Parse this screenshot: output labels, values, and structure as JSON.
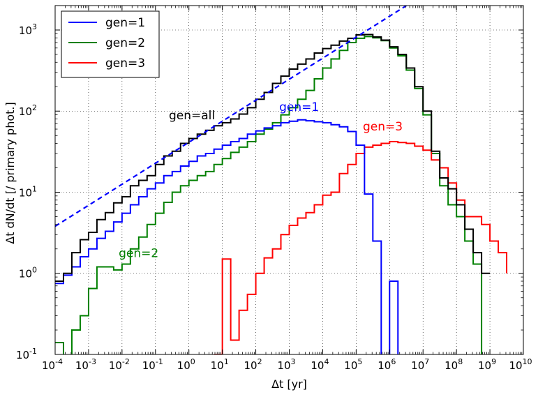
{
  "chart_data": {
    "type": "line",
    "step": true,
    "xscale": "log",
    "yscale": "log",
    "xlim": [
      0.0001,
      10000000000
    ],
    "ylim": [
      0.1,
      2000
    ],
    "grid": true,
    "legend_position": "top-left",
    "xlabel": "Δt [yr]",
    "ylabel": "Δt dN/dt [/ primary phot.]",
    "x_ticks": [
      {
        "base": "10",
        "exp": "-4"
      },
      {
        "base": "10",
        "exp": "-3"
      },
      {
        "base": "10",
        "exp": "-2"
      },
      {
        "base": "10",
        "exp": "-1"
      },
      {
        "base": "10",
        "exp": "0"
      },
      {
        "base": "10",
        "exp": "1"
      },
      {
        "base": "10",
        "exp": "2"
      },
      {
        "base": "10",
        "exp": "3"
      },
      {
        "base": "10",
        "exp": "4"
      },
      {
        "base": "10",
        "exp": "5"
      },
      {
        "base": "10",
        "exp": "6"
      },
      {
        "base": "10",
        "exp": "7"
      },
      {
        "base": "10",
        "exp": "8"
      },
      {
        "base": "10",
        "exp": "9"
      },
      {
        "base": "10",
        "exp": "10"
      }
    ],
    "y_ticks": [
      {
        "base": "10",
        "exp": "-1"
      },
      {
        "base": "10",
        "exp": "0"
      },
      {
        "base": "10",
        "exp": "1"
      },
      {
        "base": "10",
        "exp": "2"
      },
      {
        "base": "10",
        "exp": "3"
      }
    ],
    "series": [
      {
        "name": "gen=1",
        "color": "#0000ff",
        "log10_x_edges": [
          -4.0,
          -3.75,
          -3.5,
          -3.25,
          -3.0,
          -2.75,
          -2.5,
          -2.25,
          -2.0,
          -1.75,
          -1.5,
          -1.25,
          -1.0,
          -0.75,
          -0.5,
          -0.25,
          0.0,
          0.25,
          0.5,
          0.75,
          1.0,
          1.25,
          1.5,
          1.75,
          2.0,
          2.25,
          2.5,
          2.75,
          3.0,
          3.25,
          3.5,
          3.75,
          4.0,
          4.25,
          4.5,
          4.75,
          5.0,
          5.25,
          5.5,
          5.75,
          6.0,
          6.25,
          6.5
        ],
        "values": [
          0.75,
          0.95,
          1.2,
          1.6,
          2.0,
          2.7,
          3.3,
          4.3,
          5.5,
          7.0,
          8.8,
          11,
          13,
          16,
          18,
          21,
          24,
          28,
          30,
          34,
          38,
          42,
          46,
          52,
          57,
          62,
          66,
          72,
          75,
          78,
          76,
          74,
          72,
          68,
          64,
          56,
          38,
          9.5,
          2.5,
          0.0,
          0.8,
          0.0
        ]
      },
      {
        "name": "gen=2",
        "color": "#008000",
        "log10_x_edges": [
          -4.0,
          -3.75,
          -3.5,
          -3.25,
          -3.0,
          -2.75,
          -2.5,
          -2.25,
          -2.0,
          -1.75,
          -1.5,
          -1.25,
          -1.0,
          -0.75,
          -0.5,
          -0.25,
          0.0,
          0.25,
          0.5,
          0.75,
          1.0,
          1.25,
          1.5,
          1.75,
          2.0,
          2.25,
          2.5,
          2.75,
          3.0,
          3.25,
          3.5,
          3.75,
          4.0,
          4.25,
          4.5,
          4.75,
          5.0,
          5.25,
          5.5,
          5.75,
          6.0,
          6.25,
          6.5,
          6.75,
          7.0,
          7.25,
          7.5,
          7.75,
          8.0,
          8.25,
          8.5,
          8.75,
          9.0,
          9.25
        ],
        "values": [
          0.14,
          0.09,
          0.2,
          0.3,
          0.65,
          1.2,
          1.2,
          1.1,
          1.3,
          2.0,
          2.8,
          4.0,
          5.5,
          7.5,
          10,
          12,
          14,
          16,
          18,
          22,
          26,
          31,
          36,
          42,
          52,
          60,
          72,
          90,
          110,
          140,
          180,
          250,
          340,
          440,
          560,
          700,
          790,
          830,
          800,
          740,
          600,
          480,
          320,
          190,
          90,
          30,
          12,
          7,
          5,
          2.5,
          1.3,
          0.0
        ]
      },
      {
        "name": "gen=3",
        "color": "#ff0000",
        "log10_x_edges": [
          0.75,
          1.0,
          1.25,
          1.5,
          1.75,
          2.0,
          2.25,
          2.5,
          2.75,
          3.0,
          3.25,
          3.5,
          3.75,
          4.0,
          4.25,
          4.5,
          4.75,
          5.0,
          5.25,
          5.5,
          5.75,
          6.0,
          6.25,
          6.5,
          6.75,
          7.0,
          7.25,
          7.5,
          7.75,
          8.0,
          8.25,
          8.5,
          8.75,
          9.0,
          9.25,
          9.5
        ],
        "values": [
          0.1,
          1.5,
          0.15,
          0.35,
          0.55,
          1.0,
          1.55,
          2.0,
          3.0,
          3.9,
          4.8,
          5.6,
          7.0,
          9.2,
          10,
          17,
          22,
          30,
          36,
          38,
          40,
          42,
          41,
          40,
          37,
          33,
          25,
          20,
          13,
          8,
          5,
          5,
          4,
          2.5,
          1.8,
          1.0
        ]
      },
      {
        "name": "gen=all",
        "color": "#000000",
        "log10_x_edges": [
          -4.0,
          -3.75,
          -3.5,
          -3.25,
          -3.0,
          -2.75,
          -2.5,
          -2.25,
          -2.0,
          -1.75,
          -1.5,
          -1.25,
          -1.0,
          -0.75,
          -0.5,
          -0.25,
          0.0,
          0.25,
          0.5,
          0.75,
          1.0,
          1.25,
          1.5,
          1.75,
          2.0,
          2.25,
          2.5,
          2.75,
          3.0,
          3.25,
          3.5,
          3.75,
          4.0,
          4.25,
          4.5,
          4.75,
          5.0,
          5.25,
          5.5,
          5.75,
          6.0,
          6.25,
          6.5,
          6.75,
          7.0,
          7.25,
          7.5,
          7.75,
          8.0,
          8.25,
          8.5,
          8.75,
          9.0,
          9.25
        ],
        "values": [
          0.8,
          1.0,
          1.8,
          2.6,
          3.2,
          4.6,
          5.6,
          7.4,
          8.8,
          12,
          14,
          16,
          22,
          28,
          32,
          40,
          46,
          52,
          58,
          66,
          72,
          80,
          92,
          110,
          140,
          170,
          220,
          270,
          330,
          380,
          440,
          520,
          590,
          650,
          730,
          790,
          870,
          880,
          820,
          750,
          620,
          500,
          340,
          200,
          100,
          32,
          15,
          11,
          7,
          3.5,
          1.8,
          1.0
        ]
      }
    ],
    "reference_line": {
      "style": "dashed",
      "color": "#0000ff",
      "log10_points": [
        [
          -4.0,
          0.58
        ],
        [
          6.5,
          3.3
        ]
      ]
    },
    "annotations": [
      {
        "text": "gen=all",
        "color": "#000000",
        "log10_x": -0.6,
        "log10_y": 1.9
      },
      {
        "text": "gen=1",
        "color": "#0000ff",
        "log10_x": 2.7,
        "log10_y": 2.0
      },
      {
        "text": "gen=3",
        "color": "#ff0000",
        "log10_x": 5.2,
        "log10_y": 1.76
      },
      {
        "text": "gen=2",
        "color": "#008000",
        "log10_x": -2.1,
        "log10_y": 0.2
      }
    ]
  }
}
